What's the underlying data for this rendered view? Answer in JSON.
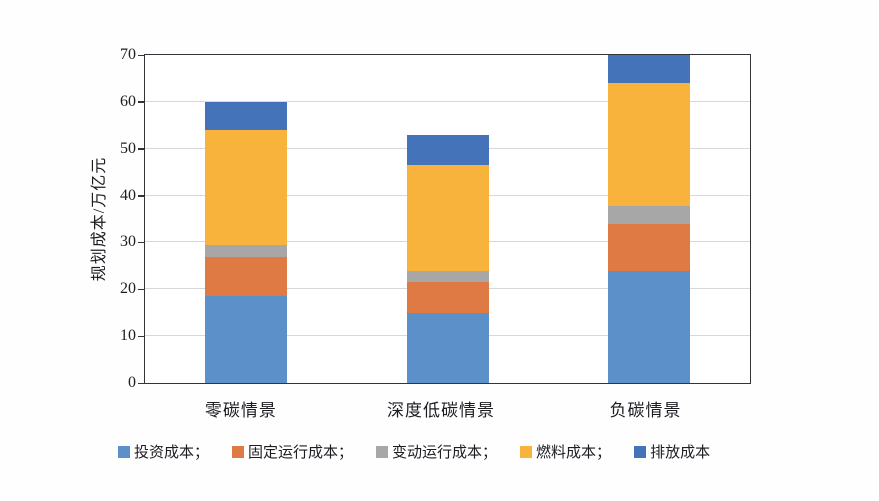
{
  "chart_data": {
    "type": "bar",
    "stacked": true,
    "title": "",
    "ylabel": "规划成本/万亿元",
    "xlabel": "",
    "ylim": [
      0,
      70
    ],
    "ytick_step": 10,
    "yticks": [
      "0",
      "10",
      "20",
      "30",
      "40",
      "50",
      "60",
      "70"
    ],
    "grid": "horizontal",
    "legend_position": "bottom",
    "categories": [
      "零碳情景",
      "深度低碳情景",
      "负碳情景"
    ],
    "series": [
      {
        "name": "投资成本；",
        "color": "#5b90c9",
        "values": [
          18.5,
          15.0,
          24.0
        ]
      },
      {
        "name": "固定运行成本；",
        "color": "#e07a44",
        "values": [
          8.5,
          6.5,
          10.0
        ]
      },
      {
        "name": "变动运行成本；",
        "color": "#a7a7a7",
        "values": [
          2.5,
          2.5,
          3.7
        ]
      },
      {
        "name": "燃料成本；",
        "color": "#f7b33c",
        "values": [
          24.5,
          22.5,
          26.3
        ]
      },
      {
        "name": "排放成本",
        "color": "#4573b9",
        "values": [
          6.0,
          6.5,
          6.0
        ]
      }
    ],
    "stack_totals": [
      60,
      53,
      70
    ],
    "colors": {
      "axis": "#33333a",
      "gridline": "#d8d8d8",
      "background": "#fefefe"
    }
  }
}
